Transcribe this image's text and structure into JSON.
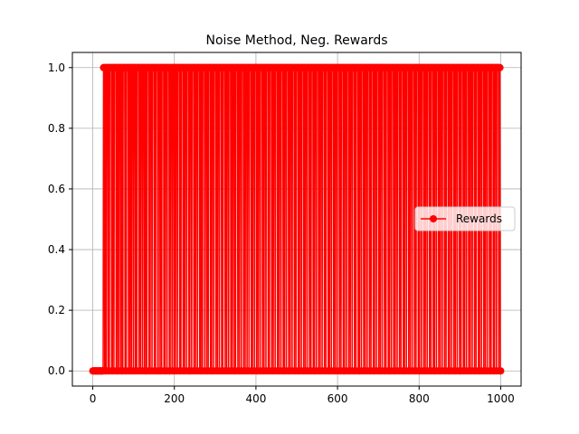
{
  "chart_data": {
    "type": "line",
    "title": "Noise Method, Neg. Rewards",
    "xlabel": "",
    "ylabel": "",
    "xlim": [
      -50,
      1050
    ],
    "ylim": [
      -0.05,
      1.05
    ],
    "xticks": [
      0,
      200,
      400,
      600,
      800,
      1000
    ],
    "yticks": [
      0.0,
      0.2,
      0.4,
      0.6,
      0.8,
      1.0
    ],
    "xtick_labels": [
      "0",
      "200",
      "400",
      "600",
      "800",
      "1000"
    ],
    "ytick_labels": [
      "0.0",
      "0.2",
      "0.4",
      "0.6",
      "0.8",
      "1.0"
    ],
    "grid": true,
    "legend_position": "center-right",
    "series": [
      {
        "name": "Rewards",
        "color": "#ff0000",
        "marker": "circle",
        "x_range": [
          0,
          1000
        ],
        "values": [
          0,
          0,
          0,
          0,
          0,
          0,
          0,
          0,
          0,
          0,
          0,
          0,
          0,
          0,
          0,
          0,
          0,
          0,
          0,
          0,
          0,
          0,
          0,
          0,
          0,
          0,
          0,
          0,
          1,
          1,
          1,
          0,
          1,
          1,
          0,
          0,
          1,
          1,
          1,
          1,
          0,
          1,
          1,
          0,
          1,
          1,
          1,
          1,
          1,
          0,
          1,
          0,
          1,
          1,
          1,
          0,
          1,
          1,
          1,
          1,
          1,
          0,
          1,
          1,
          1,
          0,
          1,
          0,
          1,
          1,
          1,
          1,
          0,
          1,
          1,
          1,
          0,
          1,
          0,
          1,
          1,
          1,
          1,
          1,
          0,
          1,
          1,
          0,
          1,
          1,
          1,
          1,
          1,
          0,
          1,
          1,
          1,
          0,
          1,
          1,
          1,
          0,
          1,
          1,
          1,
          1,
          0,
          1,
          1,
          1,
          1,
          0,
          1,
          1,
          0,
          1,
          1,
          1,
          1,
          1,
          0,
          1,
          1,
          1,
          0,
          1,
          1,
          1,
          1,
          0,
          1,
          1,
          1,
          1,
          0,
          1,
          1,
          1,
          0,
          1,
          0,
          1,
          1,
          1,
          1,
          1,
          0,
          1,
          1,
          0,
          1,
          1,
          1,
          1,
          0,
          1,
          1,
          1,
          1,
          1,
          0,
          1,
          1,
          0,
          1,
          1,
          1,
          1,
          1,
          0,
          0,
          1,
          1,
          1,
          1,
          0,
          1,
          1,
          1,
          0,
          1,
          1,
          1,
          1,
          1,
          0,
          1,
          1,
          0,
          1,
          1,
          1,
          1,
          0,
          1,
          1,
          1,
          1,
          1,
          0,
          1,
          0,
          1,
          1,
          1,
          1,
          0,
          1,
          1,
          1,
          1,
          0,
          1,
          1,
          1,
          0,
          1,
          1,
          1,
          1,
          0,
          1,
          1,
          1,
          1,
          1,
          0,
          1,
          1,
          0,
          1,
          1,
          1,
          1,
          1,
          0,
          1,
          1,
          1,
          0,
          1,
          1,
          1,
          1,
          0,
          1,
          1,
          1,
          1,
          1,
          0,
          1,
          0,
          1,
          1,
          1,
          1,
          0,
          1,
          1,
          1,
          1,
          1,
          0,
          1,
          1,
          1,
          0,
          1,
          1,
          1,
          1,
          0,
          1,
          1,
          1,
          1,
          1,
          0,
          1,
          1,
          0,
          1,
          1,
          1,
          0,
          1,
          1,
          1,
          1,
          1,
          0,
          1,
          1,
          1,
          1,
          0,
          1,
          1,
          1,
          0,
          1,
          1,
          1,
          1,
          1,
          0,
          1,
          1,
          0,
          1,
          1,
          1,
          1,
          0,
          1,
          1,
          1,
          1,
          1,
          0,
          1,
          1,
          1,
          0,
          1,
          1,
          1,
          1,
          0,
          1,
          1,
          1,
          1,
          1,
          0,
          1,
          1,
          0,
          1,
          1,
          1,
          1,
          1,
          0,
          1,
          1,
          1,
          0,
          1,
          1,
          1,
          1,
          0,
          1,
          1,
          1,
          1,
          1,
          0,
          1,
          1,
          1,
          0,
          1,
          1,
          1,
          1,
          0,
          1,
          1,
          0,
          1,
          1,
          1,
          1,
          1,
          0,
          1,
          1,
          1,
          0,
          1,
          1,
          1,
          1,
          0,
          1,
          1,
          1,
          1,
          1,
          0,
          1,
          1,
          1,
          0,
          1,
          1,
          1,
          1,
          0,
          1,
          1,
          1,
          1,
          0,
          1,
          1,
          1,
          1,
          1,
          0,
          1,
          1,
          0,
          1,
          1,
          1,
          1,
          0,
          1,
          1,
          1,
          1,
          1,
          0,
          1,
          1,
          1,
          0,
          1,
          1,
          1,
          1,
          0,
          1,
          1,
          1,
          1,
          1,
          0,
          1,
          1,
          1,
          0,
          1,
          1,
          1,
          1,
          0,
          1,
          1,
          1,
          1,
          1,
          0,
          1,
          1,
          0,
          1,
          1,
          1,
          1,
          1,
          0,
          1,
          1,
          1,
          0,
          1,
          1,
          1,
          1,
          0,
          1,
          1,
          1,
          1,
          1,
          0,
          1,
          1,
          1,
          0,
          1,
          1,
          1,
          1,
          0,
          1,
          1,
          1,
          1,
          1,
          0,
          1,
          1,
          0,
          1,
          1,
          1,
          1,
          0,
          1,
          1,
          1,
          1,
          1,
          0,
          1,
          1,
          1,
          0,
          1,
          1,
          1,
          1,
          0,
          1,
          1,
          1,
          1,
          1,
          0,
          1,
          1,
          1,
          0,
          1,
          1,
          1,
          1,
          1,
          0,
          1,
          1,
          0,
          1,
          1,
          1,
          1,
          0,
          1,
          1,
          1,
          1,
          1,
          0,
          1,
          1,
          1,
          0,
          1,
          1,
          1,
          1,
          0,
          1,
          1,
          1,
          1,
          1,
          0,
          1,
          1,
          1,
          0,
          1,
          1,
          1,
          1,
          1,
          0,
          1,
          1,
          0,
          1,
          1,
          1,
          1,
          0,
          1,
          1,
          1,
          1,
          1,
          0,
          1,
          1,
          1,
          0,
          1,
          1,
          1,
          1,
          0,
          1,
          1,
          1,
          1,
          1,
          0,
          1,
          1,
          1,
          0,
          1,
          1,
          1,
          1,
          1,
          0,
          1,
          1,
          0,
          1,
          1,
          1,
          1,
          0,
          1,
          1,
          1,
          1,
          1,
          0,
          1,
          1,
          1,
          0,
          1,
          1,
          1,
          1,
          0,
          1,
          1,
          1,
          1,
          1,
          0,
          1,
          1,
          1,
          0,
          1,
          1,
          1,
          1,
          1,
          0,
          1,
          1,
          0,
          1,
          1,
          1,
          1,
          0,
          1,
          1,
          1,
          1,
          1,
          0,
          1,
          1,
          1,
          0,
          1,
          1,
          1,
          1,
          0,
          1,
          1,
          1,
          1,
          1,
          0,
          1,
          1,
          1,
          0,
          1,
          1,
          1,
          1,
          1,
          0,
          1,
          1,
          0,
          1,
          1,
          1,
          1,
          0,
          1,
          1,
          1,
          1,
          1,
          0,
          1,
          1,
          1,
          0,
          1,
          1,
          1,
          1,
          0,
          1,
          1,
          1,
          1,
          1,
          0,
          1,
          1,
          1,
          0,
          1,
          1,
          1,
          1,
          1,
          0,
          1,
          1,
          0,
          1,
          1,
          1,
          1,
          0,
          1,
          1,
          1,
          1,
          1,
          0,
          1,
          1,
          1,
          0,
          1,
          1,
          1,
          1,
          0,
          1,
          1,
          1,
          1,
          1,
          0,
          1,
          1,
          1,
          0,
          1,
          1,
          1,
          1,
          1,
          0,
          1,
          1,
          0,
          1,
          1,
          1,
          1,
          0,
          1,
          1,
          1,
          1,
          1,
          0,
          1,
          1,
          1,
          0,
          1,
          1,
          1,
          1,
          0,
          1,
          1,
          1,
          1,
          1,
          0,
          1,
          1,
          1,
          0,
          1,
          1,
          1,
          1,
          1,
          0,
          1,
          1,
          0,
          1,
          1,
          1,
          1,
          0,
          1,
          1,
          1,
          1,
          1,
          0,
          1,
          1,
          1,
          0,
          1,
          1,
          1,
          1,
          0,
          1,
          1,
          1,
          1,
          1,
          0,
          1,
          1,
          1,
          0,
          1,
          1,
          1,
          1,
          1,
          0,
          1,
          1,
          0,
          1,
          1,
          1,
          1,
          0,
          1,
          1,
          1,
          1,
          1,
          0,
          1,
          1,
          1,
          0,
          1,
          1,
          1,
          1,
          0,
          1,
          1,
          1,
          1,
          1,
          0,
          1,
          1,
          1,
          0,
          1,
          1,
          1,
          1,
          1,
          0,
          1,
          1,
          0,
          1,
          1,
          1,
          1,
          0,
          1,
          1,
          1,
          1,
          1,
          0,
          1,
          1,
          1,
          0,
          1,
          1,
          1,
          1,
          0,
          1,
          1,
          1,
          1,
          1,
          0,
          1,
          1,
          1,
          0,
          1,
          1,
          1,
          1,
          1,
          0,
          1,
          1,
          0,
          1,
          1,
          1,
          1,
          0,
          1,
          1,
          1,
          1,
          1,
          0,
          1,
          1,
          1,
          0,
          1,
          1,
          1,
          1,
          0,
          1,
          1,
          1,
          1,
          1,
          0,
          1,
          1,
          1,
          0,
          1,
          1,
          1,
          1,
          1,
          0,
          1,
          1,
          0,
          1,
          1,
          1,
          1,
          0,
          1,
          1,
          1,
          1,
          1,
          0,
          1,
          1,
          1,
          0,
          1,
          1,
          1,
          1,
          0,
          1,
          1,
          1,
          1,
          1,
          0,
          1,
          1,
          1,
          0,
          1,
          1,
          1,
          1,
          1,
          0,
          1,
          1,
          0,
          1,
          1,
          1,
          1,
          0,
          1,
          1,
          1,
          1,
          1,
          0,
          1,
          1,
          1,
          0,
          1,
          1,
          1,
          1,
          0,
          1,
          1,
          1,
          1,
          1,
          0,
          1,
          1,
          1,
          0,
          1,
          1,
          1,
          1,
          1,
          0,
          1,
          1,
          0,
          1,
          1,
          1,
          1,
          0,
          1,
          1,
          1,
          1,
          1,
          0,
          1,
          1,
          1,
          0,
          0
        ]
      }
    ]
  }
}
